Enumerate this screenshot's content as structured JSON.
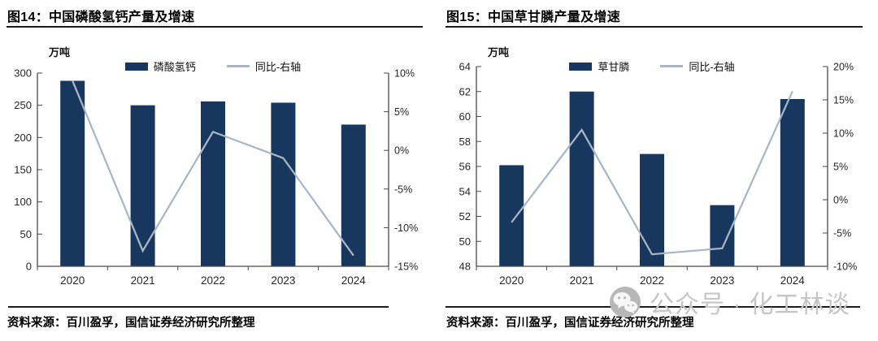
{
  "colors": {
    "bar": "#17375E",
    "line": "#A8B6C6",
    "axis": "#4A4A4A",
    "tick_text": "#262626",
    "title_text": "#000000",
    "watermark": "#C6C6C6"
  },
  "watermark": {
    "icon": "wechat-icon",
    "text": "公众号 · 化工林谈"
  },
  "chart_data": [
    {
      "type": "bar+line",
      "title": "图14：中国磷酸氢钙产量及增速",
      "unit_label": "万吨",
      "categories": [
        "2020",
        "2021",
        "2022",
        "2023",
        "2024"
      ],
      "series": [
        {
          "name": "磷酸氢钙",
          "type": "bar",
          "axis": "left",
          "unit": "万吨",
          "values": [
            288,
            250,
            256,
            254,
            220
          ]
        },
        {
          "name": "同比-右轴",
          "type": "line",
          "axis": "right",
          "unit": "%",
          "values": [
            9,
            -13,
            2.4,
            -1,
            -13.6
          ]
        }
      ],
      "left_axis": {
        "min": 0,
        "max": 300,
        "step": 50
      },
      "right_axis": {
        "min": -15,
        "max": 10,
        "step": 5,
        "suffix": "%"
      },
      "legend_position": "top",
      "grid": false,
      "source": "资料来源：百川盈孚，国信证券经济研究所整理"
    },
    {
      "type": "bar+line",
      "title": "图15：中国草甘膦产量及增速",
      "unit_label": "万吨",
      "categories": [
        "2020",
        "2021",
        "2022",
        "2023",
        "2024"
      ],
      "series": [
        {
          "name": "草甘膦",
          "type": "bar",
          "axis": "left",
          "unit": "万吨",
          "values": [
            56.1,
            62,
            57,
            52.9,
            61.4
          ]
        },
        {
          "name": "同比-右轴",
          "type": "line",
          "axis": "right",
          "unit": "%",
          "values": [
            -3.4,
            10.5,
            -8.2,
            -7.3,
            16.3
          ]
        }
      ],
      "left_axis": {
        "min": 48,
        "max": 64,
        "step": 2
      },
      "right_axis": {
        "min": -10,
        "max": 20,
        "step": 5,
        "suffix": "%"
      },
      "legend_position": "top",
      "grid": false,
      "source": "资料来源：百川盈孚，国信证券经济研究所整理"
    }
  ]
}
